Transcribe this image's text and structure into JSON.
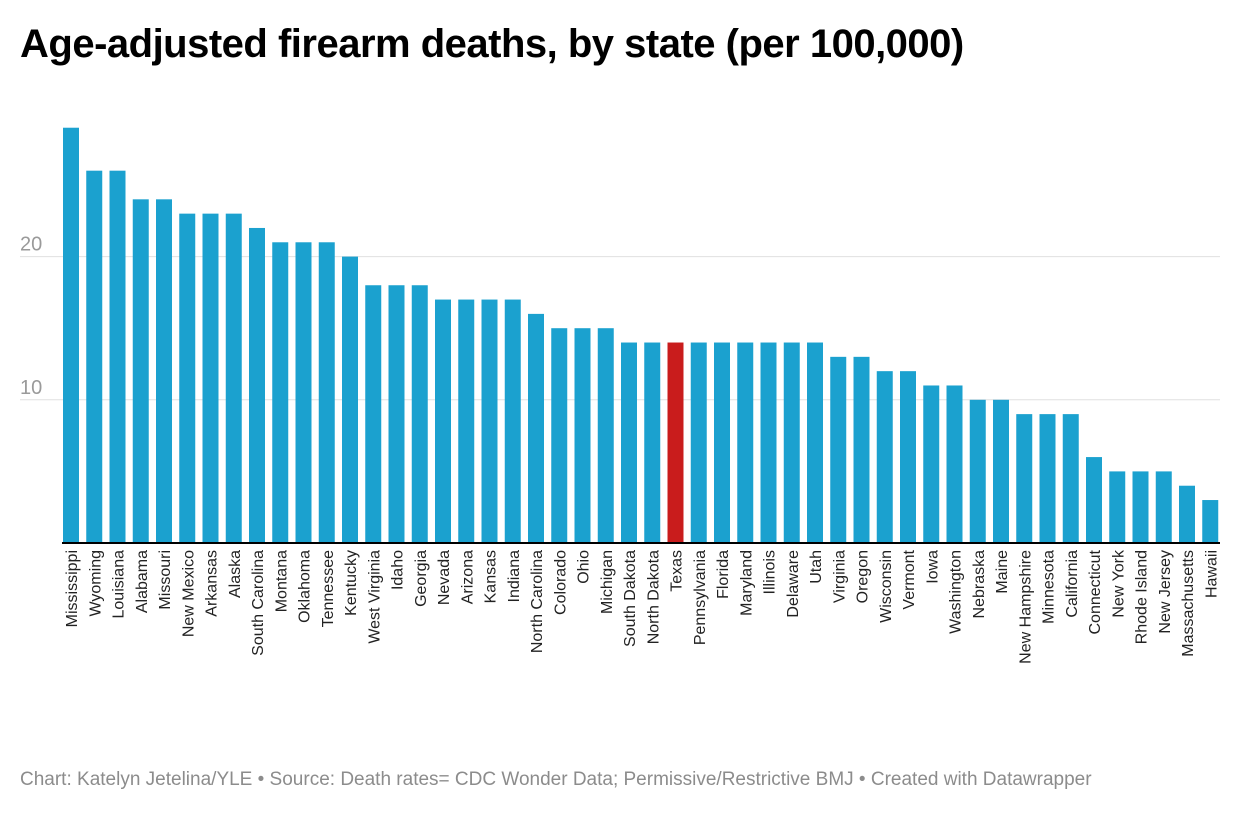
{
  "title": "Age-adjusted firearm deaths, by state (per 100,000)",
  "footer": "Chart: Katelyn Jetelina/YLE • Source: Death rates= CDC Wonder Data; Permissive/Restrictive BMJ • Created with Datawrapper",
  "colors": {
    "bar": "#1ba1cf",
    "highlight": "#c91c1c",
    "grid": "#e0e0e0",
    "axis": "#000000",
    "tick_label": "#9a9a9a",
    "category_label": "#222222"
  },
  "chart_data": {
    "type": "bar",
    "title": "Age-adjusted firearm deaths, by state (per 100,000)",
    "xlabel": "",
    "ylabel": "",
    "ylim": [
      0,
      29
    ],
    "yticks": [
      10,
      20
    ],
    "grid": true,
    "highlight": "Texas",
    "categories": [
      "Mississippi",
      "Wyoming",
      "Louisiana",
      "Alabama",
      "Missouri",
      "New Mexico",
      "Arkansas",
      "Alaska",
      "South Carolina",
      "Montana",
      "Oklahoma",
      "Tennessee",
      "Kentucky",
      "West Virginia",
      "Idaho",
      "Georgia",
      "Nevada",
      "Arizona",
      "Kansas",
      "Indiana",
      "North Carolina",
      "Colorado",
      "Ohio",
      "Michigan",
      "South Dakota",
      "North Dakota",
      "Texas",
      "Pennsylvania",
      "Florida",
      "Maryland",
      "Illinois",
      "Delaware",
      "Utah",
      "Virginia",
      "Oregon",
      "Wisconsin",
      "Vermont",
      "Iowa",
      "Washington",
      "Nebraska",
      "Maine",
      "New Hampshire",
      "Minnesota",
      "California",
      "Connecticut",
      "New York",
      "Rhode Island",
      "New Jersey",
      "Massachusetts",
      "Hawaii"
    ],
    "values": [
      29,
      26,
      26,
      24,
      24,
      23,
      23,
      23,
      22,
      21,
      21,
      21,
      20,
      18,
      18,
      18,
      17,
      17,
      17,
      17,
      16,
      15,
      15,
      15,
      14,
      14,
      14,
      14,
      14,
      14,
      14,
      14,
      14,
      13,
      13,
      12,
      12,
      11,
      11,
      10,
      10,
      9,
      9,
      9,
      6,
      5,
      5,
      5,
      4,
      3
    ]
  }
}
